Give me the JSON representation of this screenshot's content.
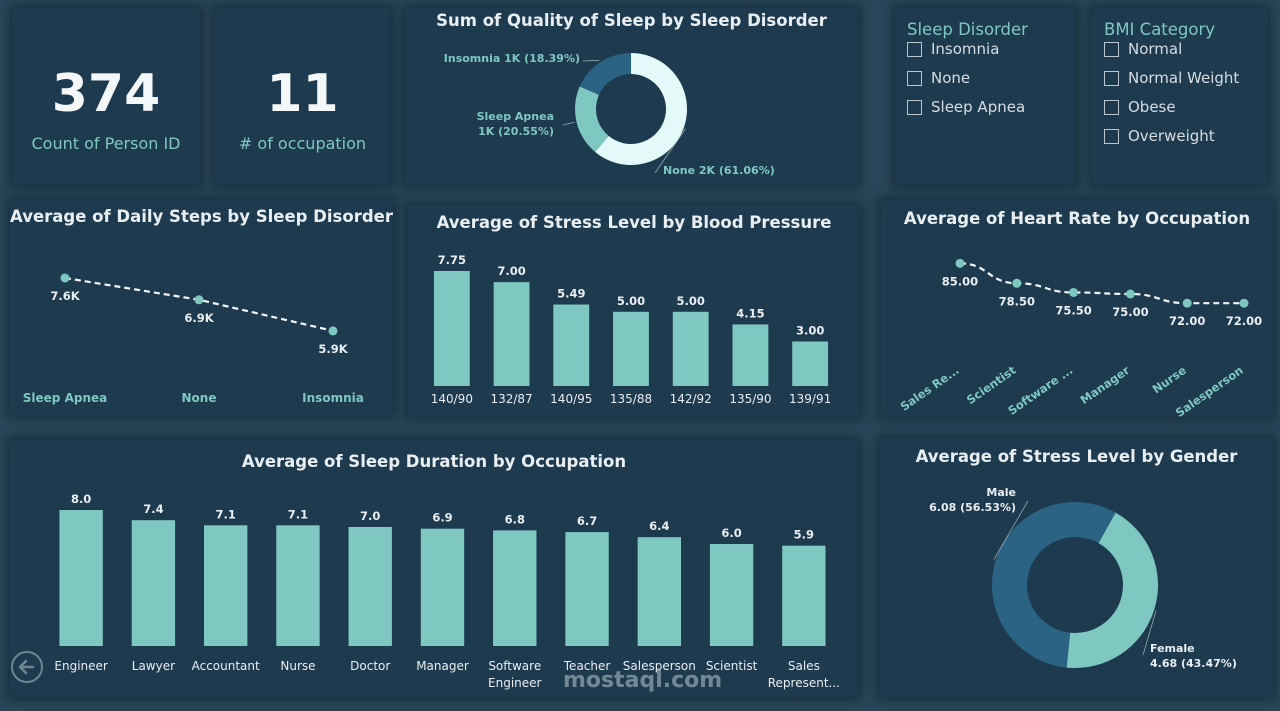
{
  "kpis": [
    {
      "value": "374",
      "label": "Count of Person ID"
    },
    {
      "value": "11",
      "label": "# of occupation"
    }
  ],
  "slicers": {
    "sleep_disorder": {
      "title": "Sleep Disorder",
      "options": [
        "Insomnia",
        "None",
        "Sleep Apnea"
      ]
    },
    "bmi": {
      "title": "BMI Category",
      "options": [
        "Normal",
        "Normal Weight",
        "Obese",
        "Overweight"
      ]
    }
  },
  "colors": {
    "bar": "#7fc8c1",
    "text": "#e9eef1",
    "accent": "#7fc8c1",
    "donut_dark": "#2b6384",
    "donut_mid": "#7fc8c1",
    "donut_light": "#e3faf8",
    "card_bg": "#1e3a4f"
  },
  "watermark": "mostaql.com",
  "chart_data": [
    {
      "id": "quality_donut",
      "type": "pie",
      "title": "Sum of Quality of Sleep by Sleep Disorder",
      "slices": [
        {
          "name": "None",
          "value": 61.06,
          "label": "None 2K (61.06%)",
          "color": "#e3faf8"
        },
        {
          "name": "Sleep Apnea",
          "value": 20.55,
          "label_lines": [
            "Sleep Apnea",
            "1K (20.55%)"
          ],
          "color": "#7fc8c1"
        },
        {
          "name": "Insomnia",
          "value": 18.39,
          "label": "Insomnia 1K (18.39%)",
          "color": "#2b6384"
        }
      ]
    },
    {
      "id": "steps_line",
      "type": "line",
      "title": "Average of Daily Steps by Sleep Disorder",
      "categories": [
        "Sleep Apnea",
        "None",
        "Insomnia"
      ],
      "values": [
        7600,
        6900,
        5900
      ],
      "labels": [
        "7.6K",
        "6.9K",
        "5.9K"
      ],
      "ylim": [
        4000,
        8500
      ]
    },
    {
      "id": "bp_bar",
      "type": "bar",
      "title": "Average of Stress Level by Blood Pressure",
      "categories": [
        "140/90",
        "132/87",
        "140/95",
        "135/88",
        "142/92",
        "135/90",
        "139/91"
      ],
      "values": [
        7.75,
        7.0,
        5.49,
        5.0,
        5.0,
        4.15,
        3.0
      ],
      "labels": [
        "7.75",
        "7.00",
        "5.49",
        "5.00",
        "5.00",
        "4.15",
        "3.00"
      ],
      "ylim": [
        0,
        7.75
      ]
    },
    {
      "id": "hr_line",
      "type": "line",
      "title": "Average of Heart Rate by Occupation",
      "categories": [
        "Sales Re...",
        "Scientist",
        "Software ...",
        "Manager",
        "Nurse",
        "Salesperson"
      ],
      "values": [
        85.0,
        78.5,
        75.5,
        75.0,
        72.0,
        72.0
      ],
      "labels": [
        "85.00",
        "78.50",
        "75.50",
        "75.00",
        "72.00",
        "72.00"
      ],
      "ylim": [
        60,
        90
      ]
    },
    {
      "id": "sleep_bar",
      "type": "bar",
      "title": "Average of Sleep Duration by Occupation",
      "categories": [
        [
          "Engineer"
        ],
        [
          "Lawyer"
        ],
        [
          "Accountant"
        ],
        [
          "Nurse"
        ],
        [
          "Doctor"
        ],
        [
          "Manager"
        ],
        [
          "Software",
          "Engineer"
        ],
        [
          "Teacher"
        ],
        [
          "Salesperson"
        ],
        [
          "Scientist"
        ],
        [
          "Sales",
          "Represent..."
        ]
      ],
      "values": [
        8.0,
        7.4,
        7.1,
        7.1,
        7.0,
        6.9,
        6.8,
        6.7,
        6.4,
        6.0,
        5.9
      ],
      "labels": [
        "8.0",
        "7.4",
        "7.1",
        "7.1",
        "7.0",
        "6.9",
        "6.8",
        "6.7",
        "6.4",
        "6.0",
        "5.9"
      ],
      "ylim": [
        0,
        8.0
      ]
    },
    {
      "id": "gender_donut",
      "type": "pie",
      "title": "Average of Stress Level by Gender",
      "slices": [
        {
          "name": "Female",
          "value": 43.47,
          "label_lines": [
            "Female",
            "4.68 (43.47%)"
          ],
          "color": "#7fc8c1"
        },
        {
          "name": "Male",
          "value": 56.53,
          "label_lines": [
            "Male",
            "6.08 (56.53%)"
          ],
          "color": "#2b6384"
        }
      ]
    }
  ]
}
